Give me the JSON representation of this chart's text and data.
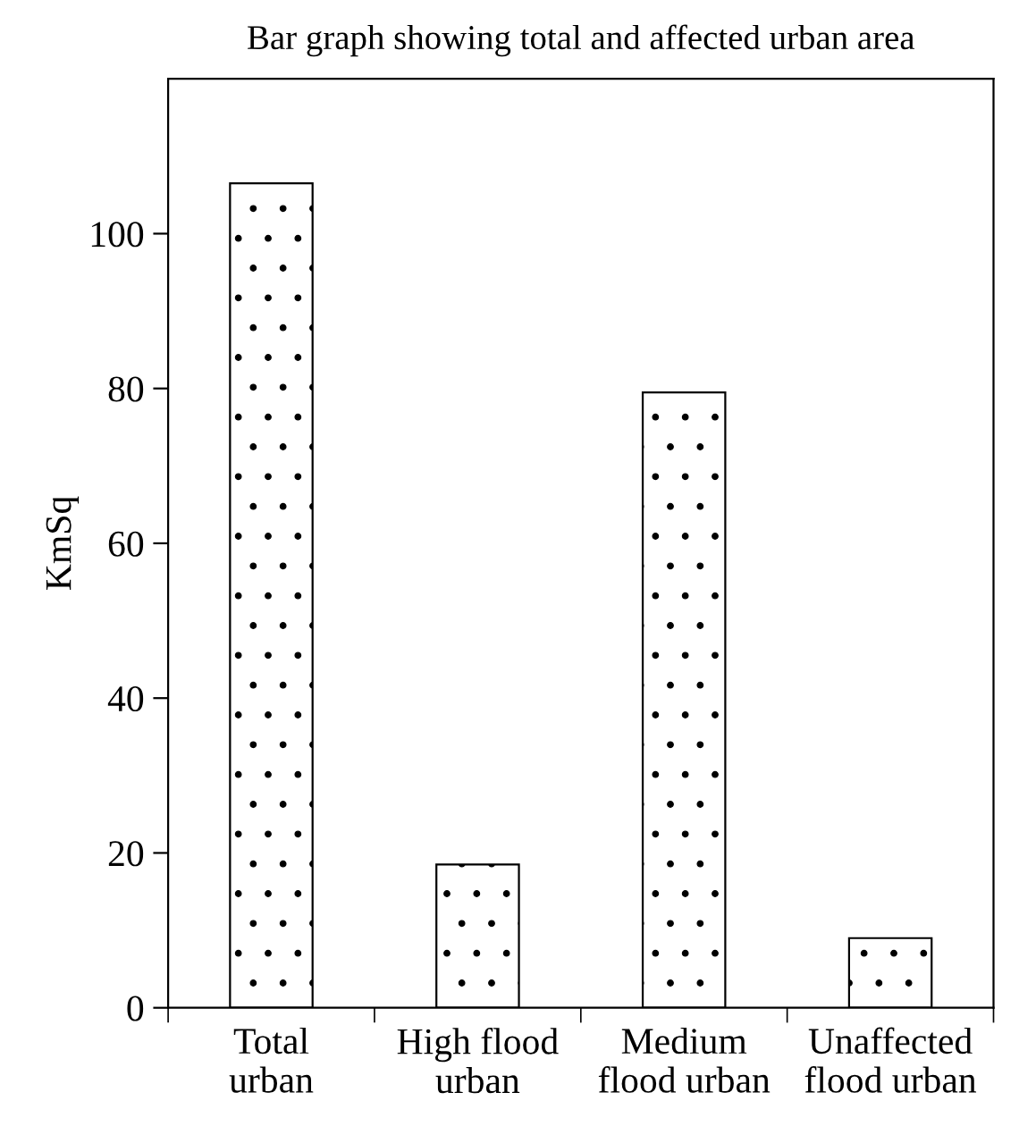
{
  "chart_data": {
    "type": "bar",
    "title": "Bar graph showing total and affected urban area",
    "ylabel": "KmSq",
    "categories": [
      "Total\nurban",
      "High flood\nurban",
      "Medium\nflood urban",
      "Unaffected\nflood urban"
    ],
    "values": [
      106.5,
      18.5,
      79.5,
      9
    ],
    "ylim": [
      0,
      120
    ],
    "yticks": [
      0,
      20,
      40,
      60,
      80,
      100
    ],
    "grid": false,
    "legend": false
  }
}
